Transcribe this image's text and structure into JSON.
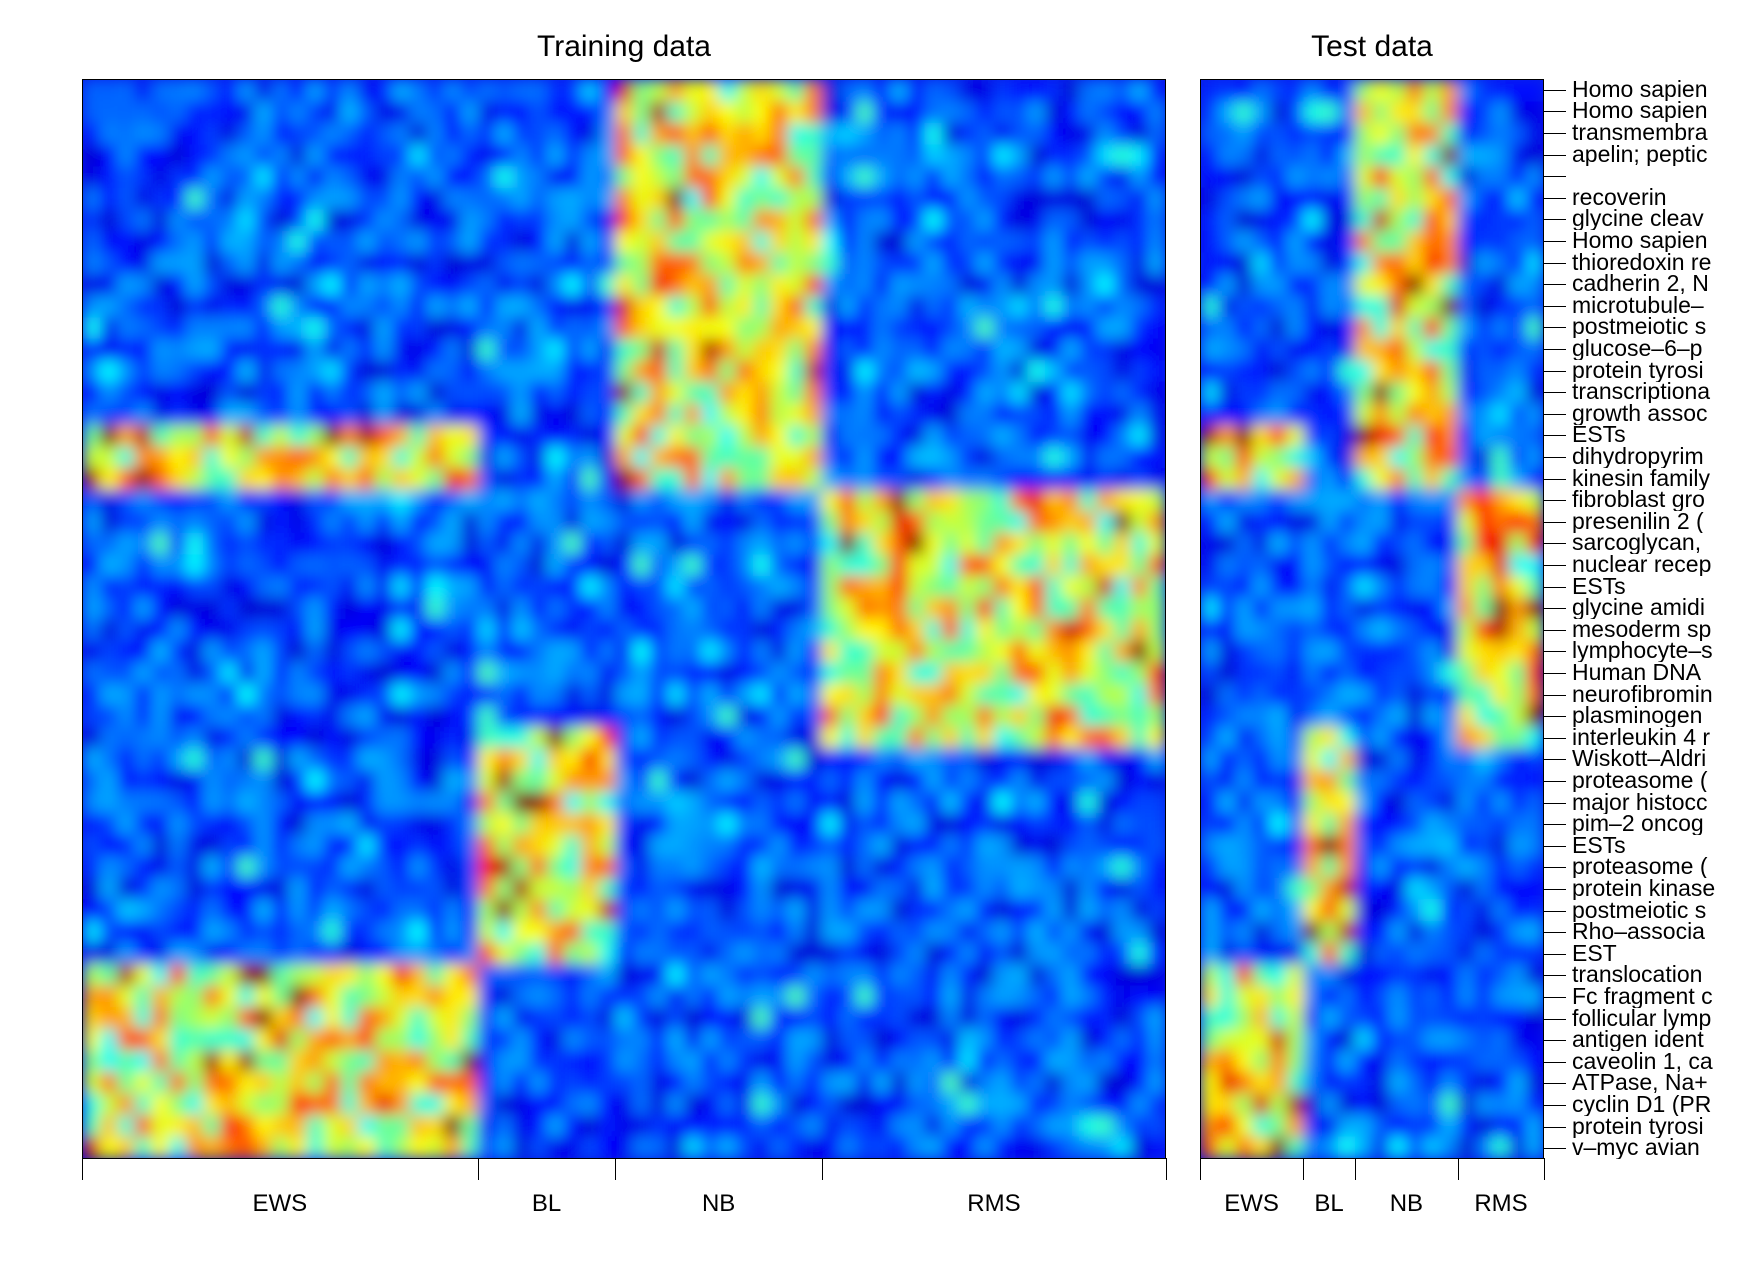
{
  "chart_data": [
    {
      "type": "heatmap",
      "title": "Training data",
      "xlabel": "",
      "ylabel": "",
      "column_groups": [
        {
          "label": "EWS",
          "n_samples": 23
        },
        {
          "label": "BL",
          "n_samples": 8
        },
        {
          "label": "NB",
          "n_samples": 12
        },
        {
          "label": "RMS",
          "n_samples": 20
        }
      ],
      "row_block_high_expression": [
        {
          "class": "NB",
          "rows": [
            0,
            18
          ]
        },
        {
          "class": "EWS",
          "rows": [
            16,
            18
          ]
        },
        {
          "class": "RMS",
          "rows": [
            19,
            30
          ]
        },
        {
          "class": "BL",
          "rows": [
            30,
            40
          ]
        },
        {
          "class": "EWS",
          "rows": [
            41,
            49
          ]
        }
      ],
      "colormap": "jet (blue = low, red = high)",
      "grid": false
    },
    {
      "type": "heatmap",
      "title": "Test data",
      "xlabel": "",
      "ylabel": "",
      "column_groups": [
        {
          "label": "EWS",
          "n_samples": 6
        },
        {
          "label": "BL",
          "n_samples": 3
        },
        {
          "label": "NB",
          "n_samples": 6
        },
        {
          "label": "RMS",
          "n_samples": 5
        }
      ],
      "row_labels": [
        "Homo sapien",
        "Homo sapien",
        "transmembra",
        "apelin; peptic",
        "",
        "recoverin",
        "glycine cleav",
        "Homo sapien",
        "thioredoxin re",
        "cadherin 2, N",
        "microtubule–",
        "postmeiotic s",
        "glucose–6–p",
        "protein tyrosi",
        "transcriptiona",
        "growth assoc",
        "ESTs",
        "dihydropyrim",
        "kinesin family",
        "fibroblast gro",
        "presenilin 2 (",
        "sarcoglycan,",
        "nuclear recep",
        "ESTs",
        "glycine amidi",
        "mesoderm sp",
        "lymphocyte–s",
        "Human DNA",
        "neurofibromin",
        "plasminogen",
        "interleukin 4 r",
        "Wiskott–Aldri",
        "proteasome (",
        "major histocc",
        "pim–2 oncog",
        "ESTs",
        "proteasome (",
        "protein kinase",
        "postmeiotic s",
        "Rho–associa",
        "EST",
        "translocation",
        "Fc fragment c",
        "follicular lymp",
        "antigen ident",
        "caveolin 1, ca",
        "ATPase, Na+",
        "cyclin D1 (PR",
        "protein tyrosi",
        "v–myc avian"
      ],
      "colormap": "jet (blue = low, red = high)",
      "grid": false
    }
  ],
  "training": {
    "title": "Training data",
    "groups": [
      "EWS",
      "BL",
      "NB",
      "RMS"
    ]
  },
  "test": {
    "title": "Test data",
    "groups": [
      "EWS",
      "BL",
      "NB",
      "RMS"
    ]
  }
}
